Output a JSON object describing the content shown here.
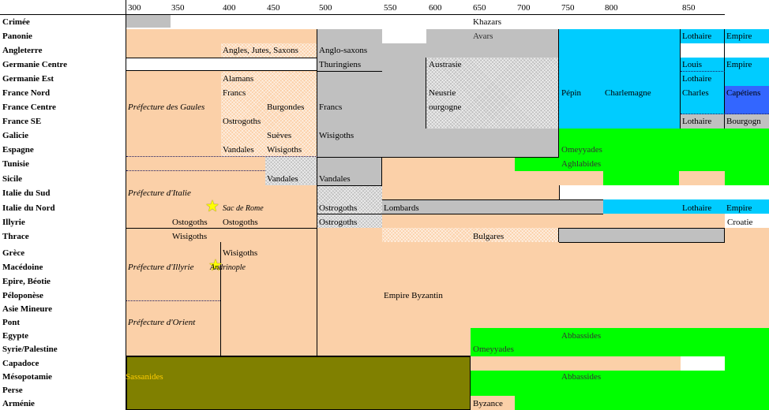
{
  "years": [
    "300",
    "350",
    "400",
    "450",
    "500",
    "550",
    "600",
    "650",
    "700",
    "750",
    "800",
    "850"
  ],
  "regions": [
    "Crimée",
    "Panonie",
    "Angleterre",
    "Germanie Centre",
    "Germanie Est",
    "France Nord",
    "France Centre",
    "France SE",
    "Galicie",
    "Espagne",
    "Tunisie",
    "Sicile",
    "Italie du Sud",
    "Italie du Nord",
    "Illyrie",
    "Thrace",
    "Grèce",
    "Macédoine",
    "Epire, Béotie",
    "Péloponèse",
    "Asie Mineure",
    "Pont",
    "Egypte",
    "Syrie/Palestine",
    "Capadoce",
    "Mésopotamie",
    "Perse",
    "Arménie"
  ],
  "colors": {
    "roman": "#fbd0a8",
    "byzantine": "#fbd0a8",
    "germanic": "#c0c0c0",
    "carolingian": "#00ccff",
    "islamic": "#00ff00",
    "sassanid": "#808000",
    "capetian": "#3366ff",
    "sassanid_text": "#ffcc00"
  },
  "labels": {
    "khazars": "Khazars",
    "avars": "Avars",
    "lothaire": "Lothaire",
    "empire": "Empire",
    "angles": "Angles, Jutes, Saxons",
    "anglosaxons": "Anglo-saxons",
    "thuringiens": "Thuringiens",
    "austrasie": "Austrasie",
    "louis": "Louis",
    "alamans": "Alamans",
    "francs": "Francs",
    "neusrie": "Neusrie",
    "ourgogne": "ourgogne",
    "pepin": "Pépin",
    "charlemagne": "Charlemagne",
    "charles": "Charles",
    "capetiens": "Capétiens",
    "prefecture_gaules": "Préfecture des Gaules",
    "burgondes": "Burgondes",
    "ostrogoths": "Ostrogoths",
    "bourgogne": "Bourgogn",
    "sueves": "Suèves",
    "wisigoths": "Wisigoths",
    "vandales": "Vandales",
    "omeyyades": "Omeyyades",
    "aghlabides": "Aghlabides",
    "prefecture_italie": "Préfecture d'Italie",
    "sac_de_rome": "Sac de Rome",
    "lombards": "Lombards",
    "ostogoths": "Ostogoths",
    "croatie": "Croatie",
    "bulgares": "Bulgares",
    "prefecture_illyrie": "Préfecture d'Illyrie",
    "andrinople": "Andrinople",
    "empire_byzantin": "Empire Byzantin",
    "prefecture_orient": "Préfecture d'Orient",
    "abbassides": "Abbassides",
    "sassanides": "Sassanides",
    "byzance": "Byzance"
  }
}
